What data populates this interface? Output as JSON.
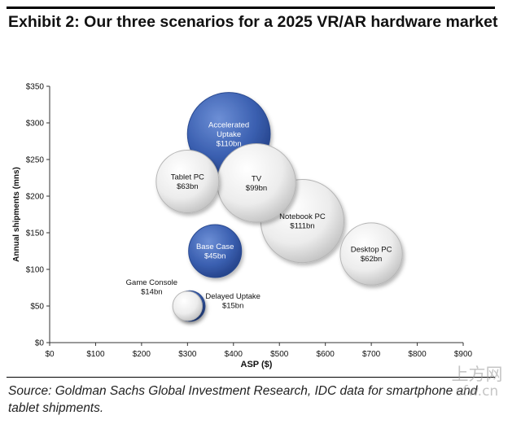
{
  "title": "Exhibit 2: Our three scenarios for a 2025 VR/AR hardware market",
  "source": "Source: Goldman Sachs Global Investment Research, IDC data for smartphone and tablet shipments.",
  "watermark": {
    "cn": "上方网",
    "en": "sfw.cn"
  },
  "chart_data": {
    "type": "scatter",
    "xlabel": "ASP ($)",
    "ylabel": "Annual shipments (mns)",
    "xlim": [
      0,
      900
    ],
    "ylim": [
      0,
      350
    ],
    "x_ticks": [
      0,
      100,
      200,
      300,
      400,
      500,
      600,
      700,
      800,
      900
    ],
    "y_ticks": [
      0,
      50,
      100,
      150,
      200,
      250,
      300,
      350
    ],
    "x_tick_labels": [
      "$0",
      "$100",
      "$200",
      "$300",
      "$400",
      "$500",
      "$600",
      "$700",
      "$800",
      "$900"
    ],
    "y_tick_labels": [
      "$0",
      "$50",
      "$100",
      "$150",
      "$200",
      "$250",
      "$300",
      "$350"
    ],
    "grid": false,
    "legend": "none",
    "colors": {
      "scenario": "#3a5fb0",
      "benchmark": "#e6e6e6"
    },
    "points": [
      {
        "label": "Accelerated Uptake",
        "value_label": "$110bn",
        "x": 390,
        "y": 285,
        "size": 110,
        "kind": "scenario",
        "label_pos": "inside"
      },
      {
        "label": "Tablet PC",
        "value_label": "$63bn",
        "x": 300,
        "y": 220,
        "size": 63,
        "kind": "benchmark",
        "label_pos": "inside"
      },
      {
        "label": "TV",
        "value_label": "$99bn",
        "x": 450,
        "y": 218,
        "size": 99,
        "kind": "benchmark",
        "label_pos": "inside"
      },
      {
        "label": "Notebook PC",
        "value_label": "$111bn",
        "x": 550,
        "y": 166,
        "size": 111,
        "kind": "benchmark",
        "label_pos": "inside"
      },
      {
        "label": "Desktop PC",
        "value_label": "$62bn",
        "x": 700,
        "y": 121,
        "size": 62,
        "kind": "benchmark",
        "label_pos": "inside"
      },
      {
        "label": "Base Case",
        "value_label": "$45bn",
        "x": 360,
        "y": 125,
        "size": 45,
        "kind": "scenario",
        "label_pos": "inside"
      },
      {
        "label": "Game Console",
        "value_label": "$14bn",
        "x": 300,
        "y": 50,
        "size": 14,
        "kind": "benchmark",
        "label_pos": "upper-left"
      },
      {
        "label": "Delayed Uptake",
        "value_label": "$15bn",
        "x": 305,
        "y": 50,
        "size": 15,
        "kind": "scenario",
        "label_pos": "right"
      }
    ]
  }
}
